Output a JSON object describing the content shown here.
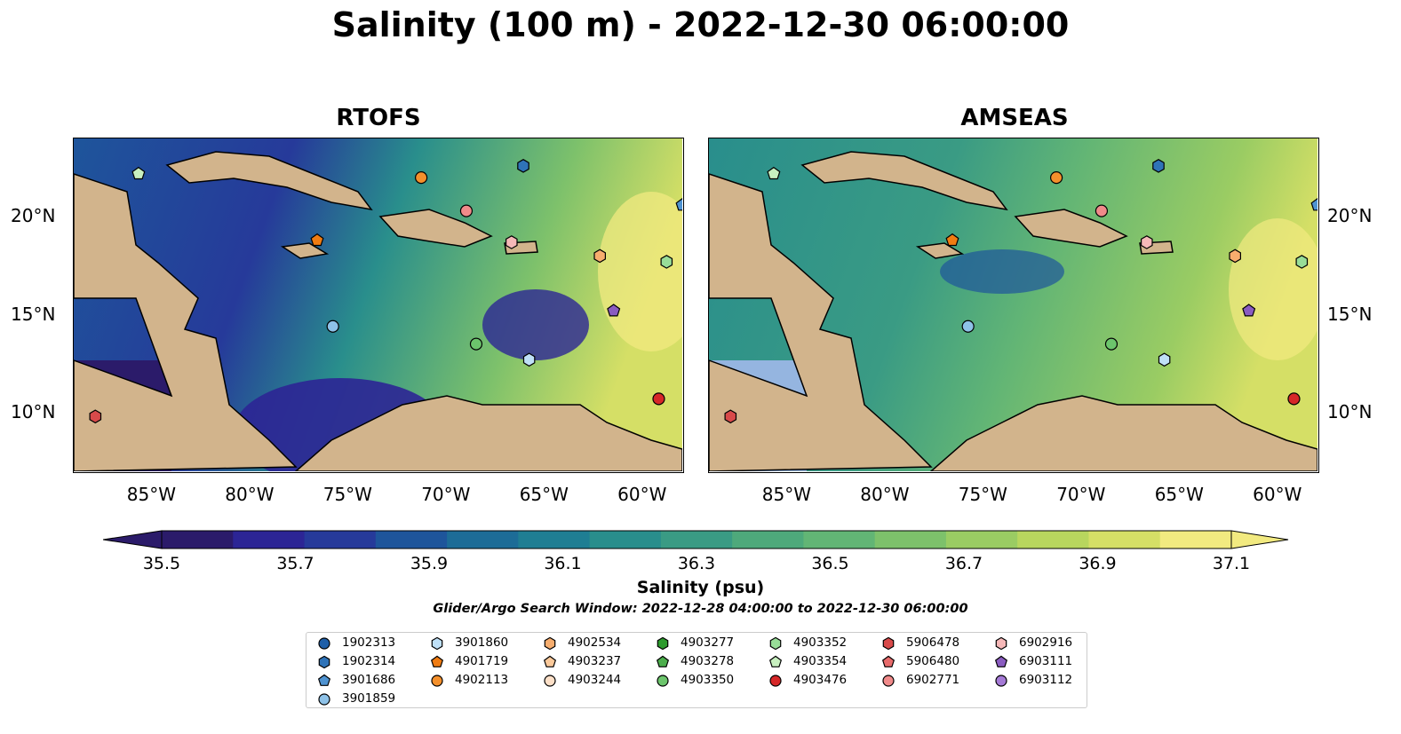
{
  "title": "Salinity (100 m) - 2022-12-30 06:00:00",
  "panels": [
    {
      "title": "RTOFS"
    },
    {
      "title": "AMSEAS"
    }
  ],
  "axes": {
    "x_ticks": [
      "85°W",
      "80°W",
      "75°W",
      "70°W",
      "65°W",
      "60°W"
    ],
    "y_ticks": [
      "20°N",
      "15°N",
      "10°N"
    ],
    "lon_range": [
      -89,
      -58
    ],
    "lat_range": [
      7,
      24
    ]
  },
  "colorbar": {
    "label": "Salinity (psu)",
    "ticks": [
      "35.5",
      "35.7",
      "35.9",
      "36.1",
      "36.3",
      "36.5",
      "36.7",
      "36.9",
      "37.1"
    ],
    "range": [
      35.5,
      37.1
    ],
    "extend": "both",
    "colors": [
      "#2b1b6a",
      "#2c2595",
      "#263a9a",
      "#1e559b",
      "#1d6c97",
      "#1f7e93",
      "#298e8c",
      "#3a9b84",
      "#4ea97b",
      "#62b575",
      "#7dc16b",
      "#9acc63",
      "#b8d65e",
      "#d5df66",
      "#f2ea80"
    ]
  },
  "search_window": "Glider/Argo Search Window: 2022-12-28 04:00:00 to 2022-12-30 06:00:00",
  "legend": [
    {
      "id": "1902313",
      "shape": "circle",
      "color": "#1f5fa8"
    },
    {
      "id": "1902314",
      "shape": "hexagon",
      "color": "#2f73b8"
    },
    {
      "id": "3901686",
      "shape": "pentagon",
      "color": "#4f93d1"
    },
    {
      "id": "3901859",
      "shape": "circle",
      "color": "#8ec2e8"
    },
    {
      "id": "3901860",
      "shape": "hexagon",
      "color": "#bfe0f7"
    },
    {
      "id": "4901719",
      "shape": "pentagon",
      "color": "#f07c12"
    },
    {
      "id": "4902113",
      "shape": "circle",
      "color": "#f4902c"
    },
    {
      "id": "4902534",
      "shape": "hexagon",
      "color": "#f7ad6e"
    },
    {
      "id": "4903237",
      "shape": "pentagon",
      "color": "#fbc99a"
    },
    {
      "id": "4903244",
      "shape": "circle",
      "color": "#fde0c8"
    },
    {
      "id": "4903277",
      "shape": "hexagon",
      "color": "#2d9a2d"
    },
    {
      "id": "4903278",
      "shape": "pentagon",
      "color": "#4cae4c"
    },
    {
      "id": "4903350",
      "shape": "circle",
      "color": "#6cc56c"
    },
    {
      "id": "4903352",
      "shape": "hexagon",
      "color": "#98dd98"
    },
    {
      "id": "4903354",
      "shape": "pentagon",
      "color": "#c8f0c0"
    },
    {
      "id": "4903476",
      "shape": "circle",
      "color": "#d62728"
    },
    {
      "id": "5906478",
      "shape": "hexagon",
      "color": "#d84a4a"
    },
    {
      "id": "5906480",
      "shape": "pentagon",
      "color": "#e86b6b"
    },
    {
      "id": "6902771",
      "shape": "circle",
      "color": "#f08a8a"
    },
    {
      "id": "6902916",
      "shape": "hexagon",
      "color": "#f6b8b8"
    },
    {
      "id": "6903111",
      "shape": "pentagon",
      "color": "#8a5cc0"
    },
    {
      "id": "6903112",
      "shape": "circle",
      "color": "#a57ad6"
    }
  ],
  "map_colors": {
    "land": "#d2b48c",
    "deep_water": "#95b5e0"
  },
  "markers": [
    {
      "id": "4903354",
      "lon": -85.7,
      "lat": 22.2
    },
    {
      "id": "4902113",
      "lon": -71.3,
      "lat": 22.0
    },
    {
      "id": "1902314",
      "lon": -66.1,
      "lat": 22.6
    },
    {
      "id": "6902771",
      "lon": -69.0,
      "lat": 20.3
    },
    {
      "id": "6902916",
      "lon": -66.7,
      "lat": 18.7
    },
    {
      "id": "4901719",
      "lon": -76.6,
      "lat": 18.8
    },
    {
      "id": "4902534",
      "lon": -62.2,
      "lat": 18.0
    },
    {
      "id": "4903352",
      "lon": -58.8,
      "lat": 17.7
    },
    {
      "id": "3901686",
      "lon": -58.0,
      "lat": 20.6
    },
    {
      "id": "6903111",
      "lon": -61.5,
      "lat": 15.2
    },
    {
      "id": "3901859",
      "lon": -75.8,
      "lat": 14.4
    },
    {
      "id": "4903350",
      "lon": -68.5,
      "lat": 13.5
    },
    {
      "id": "3901860",
      "lon": -65.8,
      "lat": 12.7
    },
    {
      "id": "5906478",
      "lon": -87.9,
      "lat": 9.8
    },
    {
      "id": "4903476",
      "lon": -59.2,
      "lat": 10.7
    }
  ]
}
